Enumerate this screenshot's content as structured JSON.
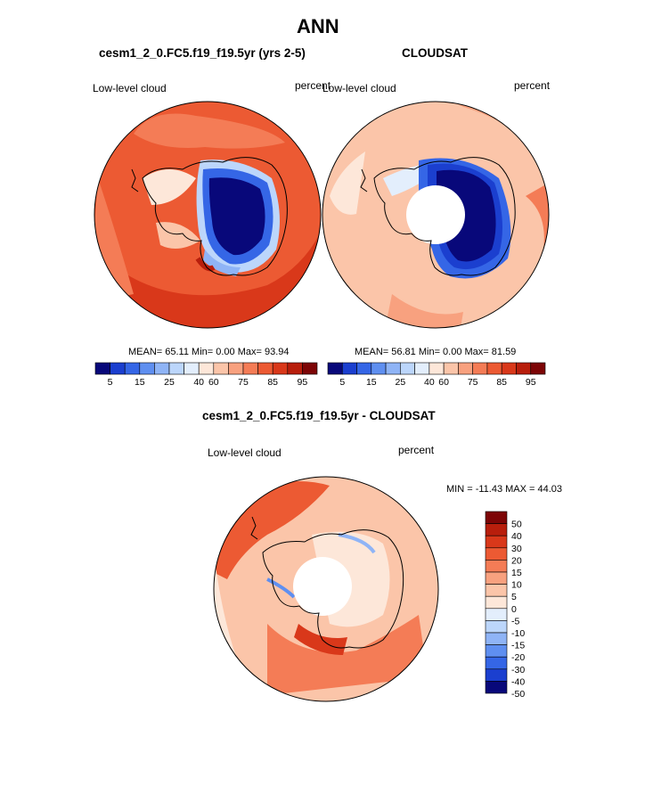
{
  "main_title": "ANN",
  "panel_left": {
    "title": "cesm1_2_0.FC5.f19_f19.5yr (yrs 2-5)",
    "left_label": "Low-level cloud",
    "right_label": "percent",
    "stats": "MEAN=  65.11  Min=   0.00  Max=  93.94"
  },
  "panel_right": {
    "title": "CLOUDSAT",
    "left_label": "Low-level cloud",
    "right_label": "percent",
    "stats": "MEAN=  56.81  Min=   0.00  Max=  81.59"
  },
  "panel_diff": {
    "title": "cesm1_2_0.FC5.f19_f19.5yr - CLOUDSAT",
    "left_label": "Low-level cloud",
    "right_label": "percent",
    "minmax": "MIN = -11.43 MAX =  44.03"
  },
  "colorbar_top": {
    "colors": [
      "#08087a",
      "#1b3fcf",
      "#3566e6",
      "#5f8ff0",
      "#8fb4f6",
      "#bcd6fb",
      "#e3eefc",
      "#fde7d9",
      "#fbc5a9",
      "#f8a17f",
      "#f47c56",
      "#ec5a33",
      "#d9381a",
      "#b81e0c",
      "#7d0506"
    ],
    "tick_labels": [
      "5",
      "15",
      "25",
      "40",
      "60",
      "75",
      "85",
      "95"
    ]
  },
  "colorbar_diff": {
    "colors": [
      "#08087a",
      "#1b3fcf",
      "#3566e6",
      "#5f8ff0",
      "#8fb4f6",
      "#bcd6fb",
      "#e3eefc",
      "#fde7d9",
      "#fbc5a9",
      "#f8a17f",
      "#f47c56",
      "#ec5a33",
      "#d9381a",
      "#b81e0c",
      "#7d0506"
    ],
    "tick_labels": [
      "50",
      "40",
      "30",
      "20",
      "15",
      "10",
      "5",
      "0",
      "-5",
      "-10",
      "-15",
      "-20",
      "-30",
      "-40",
      "-50"
    ]
  }
}
